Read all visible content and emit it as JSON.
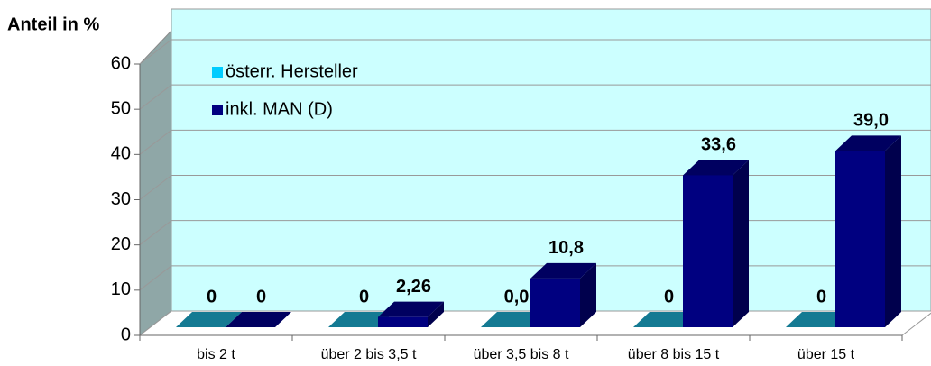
{
  "chart_data": {
    "type": "bar3d",
    "y_label": "Anteil in %",
    "categories": [
      "bis 2 t",
      "über 2 bis 3,5 t",
      "über 3,5 bis 8 t",
      "über 8 bis 15 t",
      "über 15 t"
    ],
    "series": [
      {
        "name": "österr. Hersteller",
        "color": "#1aa3c4",
        "values": [
          0,
          0,
          0,
          0,
          0
        ],
        "value_labels": [
          "0",
          "0",
          "0,0",
          "0",
          "0"
        ]
      },
      {
        "name": "inkl. MAN (D)",
        "color": "#000080",
        "values": [
          0,
          2.26,
          10.8,
          33.6,
          39.0
        ],
        "value_labels": [
          "0",
          "2,26",
          "10,8",
          "33,6",
          "39,0"
        ]
      }
    ],
    "ylim": [
      0,
      60
    ],
    "yticks": [
      0,
      10,
      20,
      30,
      40,
      50,
      60
    ],
    "grid": true
  }
}
